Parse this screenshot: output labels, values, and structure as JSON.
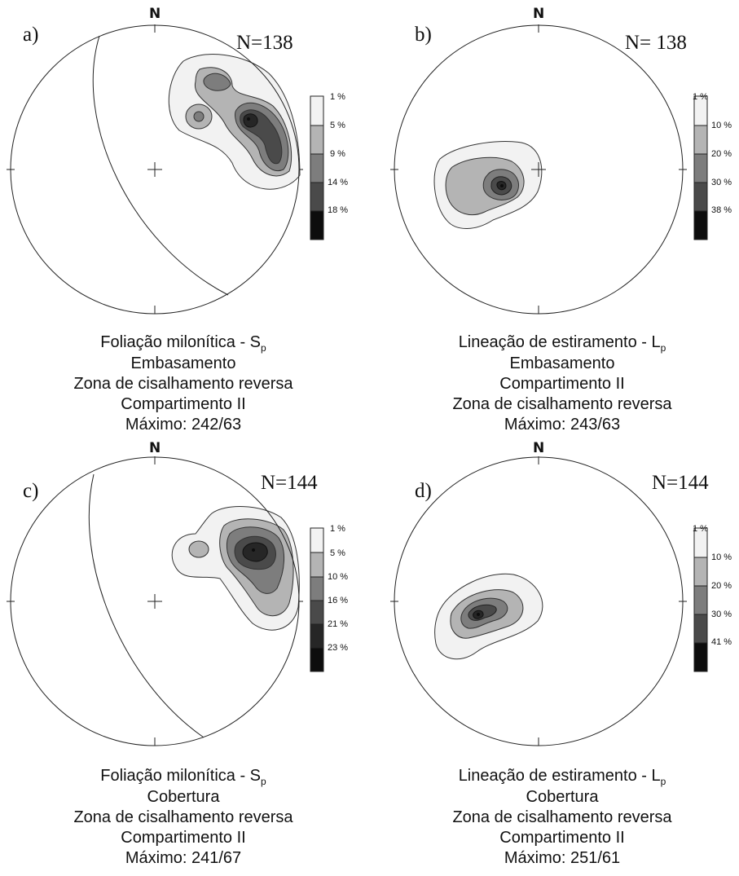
{
  "north_label": "N",
  "panels": [
    {
      "letter": "a)",
      "count": "N=138",
      "legend": [
        "1 %",
        "5 %",
        "9 %",
        "14 %",
        "18 %"
      ],
      "caption": {
        "line1_main": "Foliação milonítica - S",
        "line1_sub": "p",
        "line2": "Embasamento",
        "line3": "Zona de cisalhamento reversa",
        "line4": "Compartimento II",
        "line5": "Máximo: 242/63"
      }
    },
    {
      "letter": "b)",
      "count": "N= 138",
      "legend": [
        "1 %",
        "10 %",
        "20 %",
        "30 %",
        "38 %"
      ],
      "caption": {
        "line1_main": "Lineação de estiramento - L",
        "line1_sub": "p",
        "line2": "Embasamento",
        "line3": "Compartimento II",
        "line4": "Zona de cisalhamento reversa",
        "line5": "Máximo: 243/63"
      }
    },
    {
      "letter": "c)",
      "count": "N=144",
      "legend": [
        "1 %",
        "5 %",
        "10 %",
        "16 %",
        "21 %",
        "23 %"
      ],
      "caption": {
        "line1_main": "Foliação milonítica - S",
        "line1_sub": "p",
        "line2": "Cobertura",
        "line3": "Zona de cisalhamento reversa",
        "line4": "Compartimento II",
        "line5": "Máximo: 241/67"
      }
    },
    {
      "letter": "d)",
      "count": "N=144",
      "legend": [
        "1 %",
        "10 %",
        "20 %",
        "30 %",
        "41 %"
      ],
      "caption": {
        "line1_main": "Lineação de estiramento - L",
        "line1_sub": "p",
        "line2": "Cobertura",
        "line3": "Zona de cisalhamento reversa",
        "line4": "Compartimento II",
        "line5": "Máximo: 251/61"
      }
    }
  ],
  "colors": {
    "c1": "#f2f2f2",
    "c2": "#b4b4b4",
    "c3": "#7d7d7d",
    "c4": "#4a4a4a",
    "c5": "#262626",
    "c6": "#0d0d0d"
  }
}
